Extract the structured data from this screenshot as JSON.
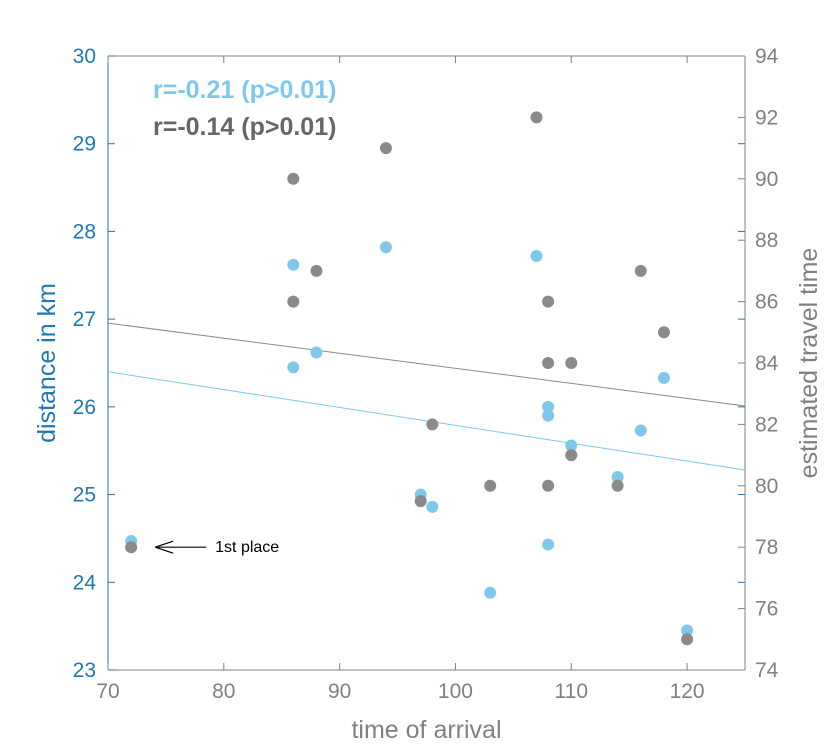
{
  "chart_data": {
    "type": "scatter",
    "xlabel": "time of arrival",
    "ylabel_left": "distance in km",
    "ylabel_right": "estimated travel time",
    "xlim": [
      70,
      125
    ],
    "ylim_left": [
      23,
      30
    ],
    "ylim_right": [
      74,
      94
    ],
    "x_ticks": [
      70,
      80,
      90,
      100,
      110,
      120
    ],
    "y_ticks_left": [
      23,
      24,
      25,
      26,
      27,
      28,
      29,
      30
    ],
    "y_ticks_right": [
      74,
      76,
      78,
      80,
      82,
      84,
      86,
      88,
      90,
      92,
      94
    ],
    "grid": false,
    "legend": [
      {
        "label": "r=-0.21 (p>0.01)",
        "color": "#7ec8ec"
      },
      {
        "label": "r=-0.14 (p>0.01)",
        "color": "#666666"
      }
    ],
    "annotation": {
      "text": "1st place",
      "x": 72,
      "y_left": 24.4
    },
    "series": [
      {
        "axis": "left",
        "color": "#7ec8ec",
        "x": [
          72,
          86,
          86,
          88,
          94,
          97,
          98,
          103,
          107,
          108,
          108,
          108,
          110,
          110,
          114,
          116,
          118,
          120
        ],
        "y": [
          24.47,
          27.62,
          26.45,
          26.62,
          27.82,
          25.0,
          24.86,
          23.88,
          27.72,
          26.0,
          25.9,
          24.43,
          25.56,
          25.45,
          25.2,
          25.73,
          26.33,
          23.45
        ],
        "trend": {
          "x": [
            70,
            125
          ],
          "y": [
            26.4,
            25.28
          ]
        }
      },
      {
        "axis": "right",
        "color": "#8a8a8a",
        "x": [
          72,
          86,
          86,
          88,
          94,
          97,
          98,
          103,
          107,
          108,
          108,
          108,
          110,
          110,
          114,
          116,
          118,
          120
        ],
        "y": [
          78.0,
          90.0,
          86.0,
          87.0,
          91.0,
          79.5,
          82.0,
          80.0,
          92.0,
          86.0,
          84.0,
          80.0,
          84.0,
          81.0,
          80.0,
          87.0,
          85.0,
          75.0
        ],
        "trend": {
          "x": [
            70,
            125
          ],
          "y": [
            85.3,
            82.6
          ]
        }
      }
    ]
  },
  "colors": {
    "left_axis": "#1f77b4",
    "right_axis": "#808080",
    "bottom_axis": "#808080",
    "left_line": "#2b7fb8"
  }
}
